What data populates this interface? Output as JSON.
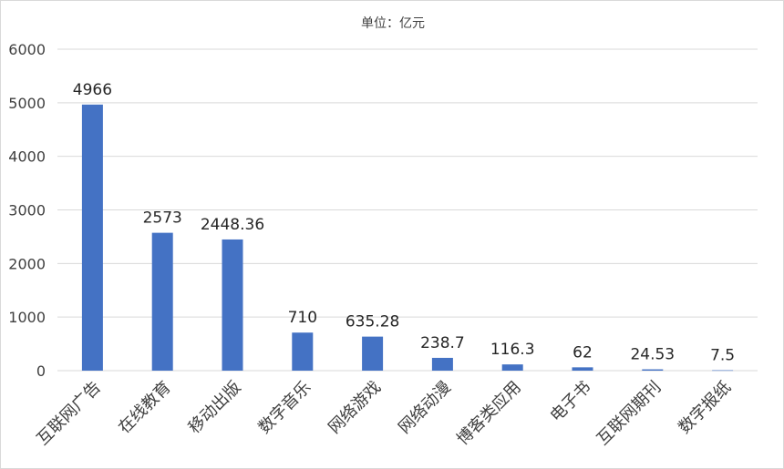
{
  "chart_data": {
    "type": "bar",
    "title": "单位：亿元",
    "categories": [
      "互联网广告",
      "在线教育",
      "移动出版",
      "数字音乐",
      "网络游戏",
      "网络动漫",
      "博客类应用",
      "电子书",
      "互联网期刊",
      "数字报纸"
    ],
    "values": [
      4966,
      2573,
      2448.36,
      710,
      635.28,
      238.7,
      116.3,
      62,
      24.53,
      7.5
    ],
    "data_labels": [
      "4966",
      "2573",
      "2448.36",
      "710",
      "635.28",
      "238.7",
      "116.3",
      "62",
      "24.53",
      "7.5"
    ],
    "yticks": [
      0,
      1000,
      2000,
      3000,
      4000,
      5000,
      6000
    ],
    "ylim": [
      0,
      6000
    ],
    "xlabel": "",
    "ylabel": "",
    "grid": "horizontal",
    "legend": "none",
    "bar_color": "#4472c4",
    "grid_color": "#d9d9d9"
  }
}
